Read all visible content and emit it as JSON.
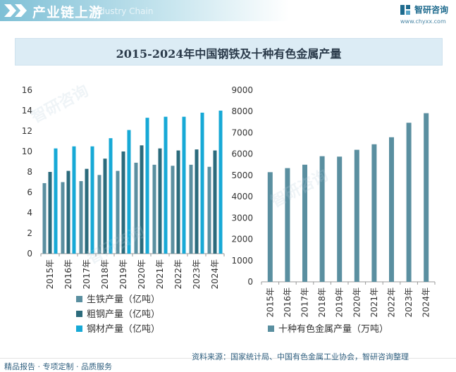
{
  "header": {
    "title": "产业链上游",
    "watermark": "Industry Chain",
    "brand_name": "智研咨询",
    "brand_url": "www.chyxx.com"
  },
  "chart_title": "2015-2024年中国钢铁及十种有色金属产量",
  "chart_data": [
    {
      "type": "bar",
      "categories": [
        "2015年",
        "2016年",
        "2017年",
        "2018年",
        "2019年",
        "2020年",
        "2021年",
        "2022年",
        "2023年",
        "2024年"
      ],
      "series": [
        {
          "name": "生铁产量（亿吨）",
          "color": "#5a8fa0",
          "values": [
            6.9,
            7.0,
            7.1,
            7.7,
            8.1,
            8.9,
            8.7,
            8.6,
            8.7,
            8.5
          ]
        },
        {
          "name": "粗钢产量（亿吨）",
          "color": "#2b6b7c",
          "values": [
            8.0,
            8.1,
            8.3,
            9.3,
            10.0,
            10.6,
            10.3,
            10.1,
            10.2,
            10.1
          ]
        },
        {
          "name": "钢材产量（亿吨）",
          "color": "#17a9d6",
          "values": [
            10.3,
            10.5,
            10.5,
            11.3,
            12.1,
            13.3,
            13.4,
            13.4,
            13.8,
            14.0
          ]
        }
      ],
      "ylim": [
        0,
        16
      ],
      "yticks": [
        "0",
        "2",
        "4",
        "6",
        "8",
        "10",
        "12",
        "14",
        "16"
      ],
      "grid": false,
      "legend_position": "bottom-left"
    },
    {
      "type": "bar",
      "categories": [
        "2015年",
        "2016年",
        "2017年",
        "2018年",
        "2019年",
        "2020年",
        "2021年",
        "2022年",
        "2023年",
        "2024年"
      ],
      "series": [
        {
          "name": "十种有色金属产量（万吨）",
          "color": "#5a8fa0",
          "values": [
            5150,
            5340,
            5500,
            5900,
            5880,
            6200,
            6460,
            6790,
            7470,
            7920
          ]
        }
      ],
      "ylim": [
        0,
        9000
      ],
      "yticks": [
        "0",
        "1000",
        "2000",
        "3000",
        "4000",
        "5000",
        "6000",
        "7000",
        "8000",
        "9000"
      ],
      "grid": false,
      "legend_position": "bottom"
    }
  ],
  "footer": {
    "source": "资料来源：国家统计局、中国有色金属工业协会，智研咨询整理",
    "services": "精品报告 · 专项定制 · 品质服务"
  }
}
